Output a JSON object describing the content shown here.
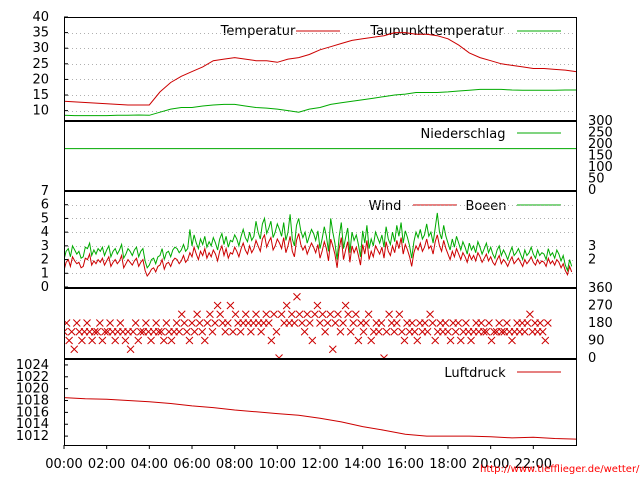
{
  "footer": {
    "link_text": "http://www.tiefflieger.de/wetter/"
  },
  "colors": {
    "primary": "#cc0000",
    "secondary": "#00aa00",
    "grid": "#b0b0b0",
    "axis": "#000000"
  },
  "time_axis": {
    "domain": [
      0,
      24
    ],
    "tick_labels": [
      "00:00",
      "02:00",
      "04:00",
      "06:00",
      "08:00",
      "10:00",
      "12:00",
      "14:00",
      "16:00",
      "18:00",
      "20:00",
      "22:00"
    ],
    "tick_hours": [
      0,
      2,
      4,
      6,
      8,
      10,
      12,
      14,
      16,
      18,
      20,
      22
    ]
  },
  "chart_data": [
    {
      "id": "temperature",
      "type": "line",
      "x": [
        0,
        0.5,
        1,
        1.5,
        2,
        2.5,
        3,
        3.5,
        4,
        4.5,
        5,
        5.5,
        6,
        6.5,
        7,
        7.5,
        8,
        8.5,
        9,
        9.5,
        10,
        10.5,
        11,
        11.5,
        12,
        12.5,
        13,
        13.5,
        14,
        14.5,
        15,
        15.5,
        16,
        16.5,
        17,
        17.5,
        18,
        18.5,
        19,
        19.5,
        20,
        20.5,
        21,
        21.5,
        22,
        22.5,
        23,
        23.5,
        24
      ],
      "series": [
        {
          "name": "Temperatur",
          "color": "#cc0000",
          "values": [
            13,
            12.8,
            12.6,
            12.4,
            12.2,
            12,
            11.8,
            11.8,
            11.8,
            16,
            19,
            21,
            22.5,
            24,
            26,
            26.5,
            27,
            26.5,
            26,
            26,
            25.5,
            26.5,
            27,
            28,
            29.5,
            30.5,
            31.5,
            32.5,
            33,
            33.5,
            34,
            35,
            35,
            34.5,
            34.5,
            34,
            33,
            31,
            28.5,
            27,
            26,
            25,
            24.5,
            24,
            23.5,
            23.5,
            23.2,
            23,
            22.5
          ]
        },
        {
          "name": "Taupunkttemperatur",
          "color": "#00aa00",
          "values": [
            8.5,
            8.4,
            8.4,
            8.4,
            8.4,
            8.5,
            8.5,
            8.6,
            8.5,
            9.5,
            10.5,
            11,
            11,
            11.5,
            11.8,
            12,
            12,
            11.5,
            11,
            10.8,
            10.5,
            10,
            9.5,
            10.5,
            11,
            12,
            12.5,
            13,
            13.5,
            14,
            14.5,
            15,
            15.3,
            15.8,
            15.8,
            15.8,
            16,
            16.3,
            16.5,
            16.8,
            16.8,
            16.8,
            16.6,
            16.5,
            16.5,
            16.5,
            16.5,
            16.6,
            16.6
          ]
        }
      ],
      "yticks": [
        10,
        15,
        20,
        25,
        30,
        35,
        40
      ],
      "ylim": [
        7,
        40
      ],
      "y_axis_side": "left",
      "grid": true,
      "legend_position": "top-right"
    },
    {
      "id": "precipitation",
      "type": "line",
      "x": [
        0,
        24
      ],
      "series": [
        {
          "name": "Niederschlag",
          "color": "#00aa00",
          "values": [
            180,
            180
          ]
        }
      ],
      "yticks": [
        0,
        50,
        100,
        150,
        200,
        250,
        300
      ],
      "ylim": [
        0,
        300
      ],
      "y_axis_side": "right",
      "grid": false,
      "legend_position": "top-right"
    },
    {
      "id": "wind",
      "type": "line",
      "x_start": 0,
      "x_step": 0.1,
      "series": [
        {
          "name": "Wind",
          "color": "#cc0000",
          "role": "lower",
          "values": [
            1.2,
            1.8,
            2.0,
            1.5,
            2.2,
            1.9,
            1.7,
            1.8,
            1.4,
            1.5,
            2.1,
            2.0,
            2.4,
            1.6,
            1.9,
            1.7,
            2.0,
            1.8,
            2.1,
            1.6,
            1.9,
            2.2,
            1.5,
            1.8,
            2.0,
            1.7,
            1.9,
            2.3,
            1.4,
            1.7,
            2.0,
            1.8,
            1.6,
            1.9,
            2.1,
            1.5,
            1.8,
            2.0,
            1.2,
            0.8,
            1.0,
            1.3,
            1.4,
            1.1,
            1.5,
            1.6,
            2.0,
            1.3,
            1.7,
            1.8,
            1.5,
            1.9,
            2.1,
            2.0,
            1.7,
            1.9,
            2.3,
            1.8,
            2.0,
            2.5,
            2.2,
            2.9,
            2.4,
            2.0,
            2.6,
            2.3,
            2.8,
            2.1,
            2.5,
            2.2,
            2.7,
            2.4,
            1.9,
            2.6,
            3.0,
            2.3,
            2.8,
            2.1,
            2.5,
            2.4,
            2.9,
            2.6,
            2.2,
            2.8,
            3.2,
            2.7,
            2.4,
            3.0,
            2.5,
            2.8,
            3.4,
            3.0,
            2.6,
            3.5,
            3.8,
            2.9,
            3.3,
            3.6,
            2.7,
            3.0,
            3.5,
            3.2,
            2.8,
            3.6,
            2.5,
            3.0,
            3.7,
            2.6,
            2.2,
            3.4,
            3.9,
            3.1,
            2.7,
            3.0,
            2.4,
            2.8,
            3.2,
            2.9,
            2.5,
            3.1,
            2.1,
            2.6,
            3.3,
            2.8,
            1.9,
            3.5,
            3.0,
            2.4,
            1.4,
            2.8,
            3.6,
            2.0,
            2.7,
            3.3,
            1.8,
            3.0,
            2.5,
            2.9,
            2.3,
            1.6,
            3.1,
            2.4,
            3.4,
            2.0,
            2.6,
            2.2,
            3.0,
            2.7,
            2.4,
            2.9,
            2.1,
            3.3,
            2.6,
            2.3,
            3.0,
            2.5,
            3.4,
            2.8,
            3.6,
            2.4,
            3.1,
            2.7,
            2.2,
            1.5,
            2.5,
            3.0,
            2.7,
            3.2,
            2.6,
            2.9,
            3.5,
            2.8,
            3.0,
            2.4,
            3.3,
            3.8,
            3.0,
            2.6,
            3.4,
            2.8,
            2.4,
            2.0,
            2.6,
            2.2,
            2.8,
            2.4,
            2.0,
            2.5,
            2.2,
            1.8,
            2.4,
            2.0,
            2.3,
            1.9,
            2.5,
            2.2,
            1.8,
            2.1,
            2.4,
            1.9,
            2.2,
            1.8,
            1.6,
            2.0,
            2.3,
            1.7,
            2.0,
            1.8,
            1.5,
            1.9,
            2.2,
            1.7,
            1.9,
            2.1,
            1.8,
            1.5,
            2.0,
            1.7,
            1.9,
            2.2,
            1.8,
            1.6,
            2.0,
            1.7,
            1.9,
            1.8,
            1.5,
            2.1,
            1.7,
            1.9,
            1.6,
            2.0,
            1.8,
            1.4,
            1.7,
            1.2,
            0.9,
            1.5,
            1.1
          ]
        },
        {
          "name": "Boeen",
          "color": "#00aa00",
          "role": "upper",
          "values": [
            2.0,
            2.6,
            2.8,
            2.2,
            3.0,
            2.7,
            2.4,
            2.6,
            2.1,
            2.2,
            2.9,
            2.8,
            3.2,
            2.3,
            2.7,
            2.4,
            2.8,
            2.6,
            2.9,
            2.3,
            2.7,
            3.0,
            2.2,
            2.6,
            2.8,
            2.4,
            2.7,
            3.1,
            2.1,
            2.4,
            2.8,
            2.6,
            2.3,
            2.7,
            2.9,
            2.2,
            2.6,
            2.8,
            1.9,
            1.4,
            1.6,
            2.0,
            2.1,
            1.7,
            2.2,
            2.3,
            2.8,
            2.0,
            2.5,
            2.6,
            2.2,
            2.7,
            2.9,
            2.8,
            2.5,
            2.7,
            3.1,
            2.6,
            2.8,
            4.2,
            3.0,
            3.8,
            3.2,
            2.8,
            3.5,
            3.1,
            3.7,
            2.9,
            3.3,
            3.0,
            3.6,
            3.2,
            2.7,
            3.5,
            3.9,
            3.1,
            3.7,
            2.9,
            3.4,
            3.3,
            3.8,
            3.5,
            3.0,
            3.7,
            4.2,
            3.6,
            3.3,
            4.0,
            3.4,
            3.7,
            4.8,
            4.0,
            3.5,
            4.6,
            5.0,
            3.9,
            4.3,
            4.8,
            3.6,
            4.0,
            4.6,
            4.2,
            3.7,
            4.7,
            3.4,
            4.0,
            5.3,
            3.5,
            3.0,
            4.5,
            5.0,
            4.1,
            3.6,
            4.0,
            3.2,
            3.7,
            4.2,
            3.9,
            3.4,
            4.1,
            2.8,
            3.5,
            4.4,
            3.7,
            2.6,
            5.0,
            4.0,
            3.2,
            2.0,
            3.7,
            4.7,
            2.8,
            3.6,
            4.3,
            2.5,
            4.0,
            3.4,
            3.8,
            3.1,
            2.2,
            4.1,
            3.2,
            4.5,
            2.8,
            3.5,
            3.0,
            4.0,
            3.6,
            3.2,
            3.8,
            2.9,
            4.4,
            3.5,
            3.1,
            4.0,
            3.3,
            4.5,
            3.7,
            4.7,
            3.2,
            4.1,
            3.6,
            3.0,
            2.1,
            3.3,
            4.0,
            3.6,
            4.2,
            3.5,
            3.8,
            4.6,
            3.7,
            4.0,
            3.2,
            4.3,
            5.4,
            4.0,
            3.5,
            4.5,
            3.7,
            3.2,
            2.7,
            3.5,
            2.9,
            3.7,
            3.2,
            2.7,
            3.3,
            2.9,
            2.4,
            3.2,
            2.7,
            3.0,
            2.5,
            3.3,
            2.9,
            2.4,
            2.8,
            3.2,
            2.5,
            2.9,
            2.4,
            2.1,
            2.7,
            3.0,
            2.3,
            2.7,
            2.4,
            2.0,
            2.5,
            2.9,
            2.3,
            2.5,
            2.8,
            2.4,
            2.0,
            2.7,
            2.3,
            2.5,
            2.9,
            2.4,
            2.1,
            2.7,
            2.3,
            2.5,
            2.4,
            2.0,
            2.8,
            2.3,
            2.5,
            2.1,
            2.7,
            2.4,
            1.9,
            2.3,
            1.6,
            1.2,
            2.0,
            1.5
          ]
        }
      ],
      "yticks": [
        0,
        1,
        2,
        3,
        4,
        5,
        6,
        7
      ],
      "ylim": [
        0,
        7
      ],
      "y_axis_side": "left",
      "right_ticks": [
        2,
        3
      ],
      "grid": true,
      "legend_position": "top-right"
    },
    {
      "id": "wind_direction",
      "type": "scatter",
      "x_start": 0,
      "x_step": 0.12,
      "series": [
        {
          "color": "#cc0000",
          "values": [
            135,
            180,
            90,
            135,
            45,
            180,
            135,
            90,
            135,
            180,
            135,
            90,
            135,
            135,
            180,
            90,
            135,
            135,
            180,
            135,
            90,
            135,
            180,
            135,
            90,
            135,
            45,
            135,
            180,
            90,
            135,
            135,
            180,
            135,
            90,
            135,
            180,
            135,
            135,
            90,
            180,
            135,
            90,
            135,
            180,
            135,
            225,
            180,
            135,
            90,
            180,
            135,
            225,
            180,
            135,
            90,
            180,
            225,
            135,
            180,
            270,
            225,
            180,
            135,
            180,
            270,
            135,
            225,
            180,
            135,
            180,
            225,
            180,
            135,
            180,
            225,
            180,
            135,
            180,
            225,
            180,
            90,
            225,
            135,
            0,
            225,
            180,
            270,
            180,
            225,
            180,
            315,
            225,
            180,
            135,
            225,
            180,
            90,
            225,
            270,
            180,
            225,
            135,
            180,
            225,
            45,
            180,
            225,
            135,
            180,
            270,
            225,
            135,
            180,
            225,
            90,
            180,
            135,
            180,
            225,
            90,
            135,
            180,
            135,
            180,
            0,
            135,
            225,
            180,
            135,
            180,
            225,
            135,
            90,
            180,
            135,
            180,
            135,
            90,
            180,
            135,
            180,
            135,
            225,
            180,
            90,
            135,
            180,
            135,
            180,
            135,
            90,
            180,
            135,
            180,
            90,
            135,
            180,
            135,
            90,
            135,
            180,
            135,
            180,
            135,
            135,
            180,
            90,
            135,
            135,
            180,
            135,
            135,
            180,
            135,
            90,
            135,
            180,
            135,
            180,
            135,
            180,
            225,
            135,
            180,
            135,
            180,
            135,
            90,
            180
          ]
        }
      ],
      "yticks": [
        0,
        90,
        180,
        270,
        360
      ],
      "ylim": [
        0,
        360
      ],
      "y_axis_side": "right",
      "grid": false
    },
    {
      "id": "pressure",
      "type": "line",
      "x": [
        0,
        1,
        2,
        3,
        4,
        5,
        6,
        7,
        8,
        9,
        10,
        11,
        12,
        13,
        14,
        15,
        16,
        17,
        18,
        19,
        20,
        21,
        22,
        23,
        24
      ],
      "series": [
        {
          "name": "Luftdruck",
          "color": "#cc0000",
          "values": [
            1018.5,
            1018.3,
            1018.2,
            1018.0,
            1017.8,
            1017.5,
            1017.1,
            1016.8,
            1016.4,
            1016.1,
            1015.8,
            1015.5,
            1015.0,
            1014.4,
            1013.6,
            1013.0,
            1012.3,
            1012.0,
            1012.0,
            1012.0,
            1011.9,
            1011.7,
            1011.8,
            1011.6,
            1011.5
          ]
        }
      ],
      "yticks": [
        1012,
        1014,
        1016,
        1018,
        1020,
        1022,
        1024
      ],
      "ylim": [
        1010.5,
        1025
      ],
      "y_axis_side": "left",
      "grid": false,
      "legend_position": "top-right"
    }
  ]
}
